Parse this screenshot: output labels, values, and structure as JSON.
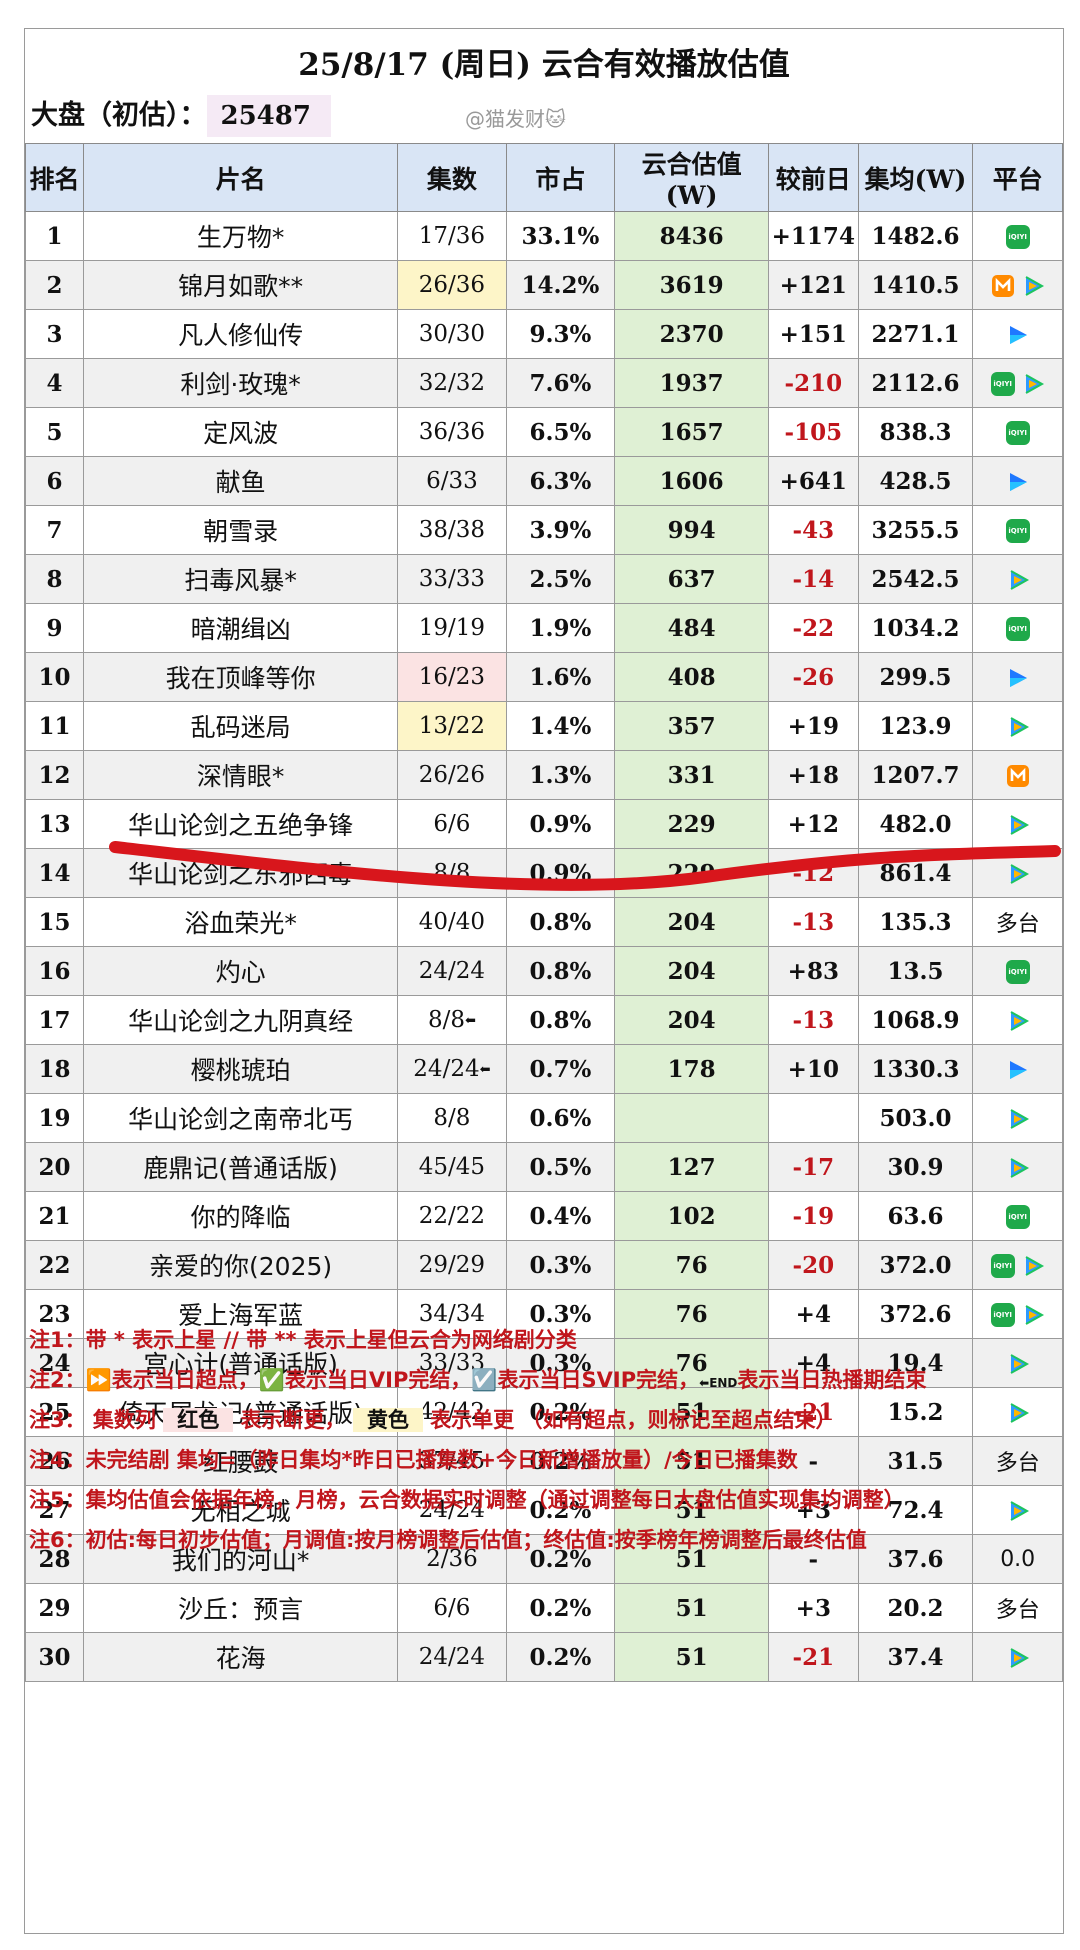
{
  "title": "25/8/17 (周日) 云合有效播放估值",
  "summary": {
    "label": "大盘（初估）：",
    "value": "25487"
  },
  "watermark": "@猫发财🐱",
  "headers": [
    "排名",
    "片名",
    "集数",
    "市占",
    "云合估值(W)",
    "较前日",
    "集均(W)",
    "平台"
  ],
  "colors": {
    "header_bg": "#d9e5f5",
    "estimate_bg": "#dff0d4",
    "negative": "#c0161c",
    "episode_red": "#fbe3e3",
    "episode_yellow": "#fdf5c8",
    "strike_line": "#d8161c"
  },
  "rows": [
    {
      "rank": "1",
      "name": "生万物*",
      "eps": "17/36",
      "share": "33.1%",
      "est": "8436",
      "chg": "+1174",
      "avg": "1482.6",
      "plat": [
        "iqiyi-icon"
      ]
    },
    {
      "rank": "2",
      "name": "锦月如歌**",
      "eps": "26/36",
      "eps_mark": "yellow",
      "share": "14.2%",
      "est": "3619",
      "chg": "+121",
      "avg": "1410.5",
      "plat": [
        "mango-icon",
        "tencent-video-icon"
      ]
    },
    {
      "rank": "3",
      "name": "凡人修仙传",
      "eps": "30/30",
      "share": "9.3%",
      "est": "2370",
      "chg": "+151",
      "avg": "2271.1",
      "plat": [
        "youku-icon"
      ]
    },
    {
      "rank": "4",
      "name": "利剑·玫瑰*",
      "eps": "32/32",
      "share": "7.6%",
      "est": "1937",
      "chg": "-210",
      "avg": "2112.6",
      "plat": [
        "iqiyi-icon",
        "tencent-video-icon"
      ]
    },
    {
      "rank": "5",
      "name": "定风波",
      "eps": "36/36",
      "share": "6.5%",
      "est": "1657",
      "chg": "-105",
      "avg": "838.3",
      "plat": [
        "iqiyi-icon"
      ]
    },
    {
      "rank": "6",
      "name": "献鱼",
      "eps": "6/33",
      "share": "6.3%",
      "est": "1606",
      "chg": "+641",
      "avg": "428.5",
      "plat": [
        "youku-icon"
      ]
    },
    {
      "rank": "7",
      "name": "朝雪录",
      "eps": "38/38",
      "share": "3.9%",
      "est": "994",
      "chg": "-43",
      "avg": "3255.5",
      "plat": [
        "iqiyi-icon"
      ]
    },
    {
      "rank": "8",
      "name": "扫毒风暴*",
      "eps": "33/33",
      "share": "2.5%",
      "est": "637",
      "chg": "-14",
      "avg": "2542.5",
      "plat": [
        "tencent-video-icon"
      ]
    },
    {
      "rank": "9",
      "name": "暗潮缉凶",
      "eps": "19/19",
      "share": "1.9%",
      "est": "484",
      "chg": "-22",
      "avg": "1034.2",
      "plat": [
        "iqiyi-icon"
      ]
    },
    {
      "rank": "10",
      "name": "我在顶峰等你",
      "eps": "16/23",
      "eps_mark": "red",
      "share": "1.6%",
      "est": "408",
      "chg": "-26",
      "avg": "299.5",
      "plat": [
        "youku-icon"
      ]
    },
    {
      "rank": "11",
      "name": "乱码迷局",
      "eps": "13/22",
      "eps_mark": "yellow",
      "share": "1.4%",
      "est": "357",
      "chg": "+19",
      "avg": "123.9",
      "plat": [
        "tencent-video-icon"
      ]
    },
    {
      "rank": "12",
      "name": "深情眼*",
      "eps": "26/26",
      "share": "1.3%",
      "est": "331",
      "chg": "+18",
      "avg": "1207.7",
      "plat": [
        "mango-icon"
      ]
    },
    {
      "rank": "13",
      "name": "华山论剑之五绝争锋",
      "eps": "6/6",
      "share": "0.9%",
      "est": "229",
      "chg": "+12",
      "avg": "482.0",
      "plat": [
        "tencent-video-icon"
      ]
    },
    {
      "rank": "14",
      "name": "华山论剑之东邪西毒",
      "eps": "8/8",
      "share": "0.9%",
      "est": "229",
      "chg": "-12",
      "avg": "861.4",
      "plat": [
        "tencent-video-icon"
      ]
    },
    {
      "rank": "15",
      "name": "浴血荣光*",
      "eps": "40/40",
      "share": "0.8%",
      "est": "204",
      "chg": "-13",
      "avg": "135.3",
      "plat_text": "多台"
    },
    {
      "rank": "16",
      "name": "灼心",
      "eps": "24/24",
      "share": "0.8%",
      "est": "204",
      "chg": "+83",
      "avg": "13.5",
      "plat": [
        "iqiyi-icon"
      ]
    },
    {
      "rank": "17",
      "name": "华山论剑之九阴真经",
      "eps": "8/8",
      "eps_end": true,
      "share": "0.8%",
      "est": "204",
      "chg": "-13",
      "avg": "1068.9",
      "plat": [
        "tencent-video-icon"
      ]
    },
    {
      "rank": "18",
      "name": "樱桃琥珀",
      "eps": "24/24",
      "eps_end": true,
      "share": "0.7%",
      "est": "178",
      "chg": "+10",
      "avg": "1330.3",
      "plat": [
        "youku-icon"
      ]
    },
    {
      "rank": "19",
      "name": "华山论剑之南帝北丐",
      "eps": "8/8",
      "share": "0.6%",
      "est": "",
      "chg": "",
      "avg": "503.0",
      "plat": [
        "tencent-video-icon"
      ]
    },
    {
      "rank": "20",
      "name": "鹿鼎记(普通话版)",
      "eps": "45/45",
      "share": "0.5%",
      "est": "127",
      "chg": "-17",
      "avg": "30.9",
      "plat": [
        "tencent-video-icon"
      ]
    },
    {
      "rank": "21",
      "name": "你的降临",
      "eps": "22/22",
      "share": "0.4%",
      "est": "102",
      "chg": "-19",
      "avg": "63.6",
      "plat": [
        "iqiyi-icon"
      ]
    },
    {
      "rank": "22",
      "name": "亲爱的你(2025)",
      "eps": "29/29",
      "share": "0.3%",
      "est": "76",
      "chg": "-20",
      "avg": "372.0",
      "plat": [
        "iqiyi-icon",
        "tencent-video-icon"
      ]
    },
    {
      "rank": "23",
      "name": "爱上海军蓝",
      "eps": "34/34",
      "share": "0.3%",
      "est": "76",
      "chg": "+4",
      "avg": "372.6",
      "plat": [
        "iqiyi-icon",
        "tencent-video-icon"
      ]
    },
    {
      "rank": "24",
      "name": "宫心计(普通话版)",
      "eps": "33/33",
      "share": "0.3%",
      "est": "76",
      "chg": "+4",
      "avg": "19.4",
      "plat": [
        "tencent-video-icon"
      ]
    },
    {
      "rank": "25",
      "name": "倚天屠龙记(普通话版)",
      "eps": "42/42",
      "share": "0.2%",
      "est": "51",
      "chg": "-21",
      "avg": "15.2",
      "plat": [
        "tencent-video-icon"
      ]
    },
    {
      "rank": "26",
      "name": "红腰鼓",
      "eps": "37/45",
      "share": "0.2%",
      "est": "51",
      "chg": "-",
      "avg": "31.5",
      "plat_text": "多台"
    },
    {
      "rank": "27",
      "name": "无相之城",
      "eps": "24/24",
      "share": "0.2%",
      "est": "51",
      "chg": "+3",
      "avg": "72.4",
      "plat": [
        "tencent-video-icon"
      ]
    },
    {
      "rank": "28",
      "name": "我们的河山*",
      "eps": "2/36",
      "share": "0.2%",
      "est": "51",
      "chg": "-",
      "avg": "37.6",
      "plat_text": "0.0"
    },
    {
      "rank": "29",
      "name": "沙丘：预言",
      "eps": "6/6",
      "share": "0.2%",
      "est": "51",
      "chg": "+3",
      "avg": "20.2",
      "plat_text": "多台"
    },
    {
      "rank": "30",
      "name": "花海",
      "eps": "24/24",
      "share": "0.2%",
      "est": "51",
      "chg": "-21",
      "avg": "37.4",
      "plat": [
        "tencent-video-icon"
      ]
    }
  ],
  "notes": {
    "n1": "注1：带 * 表示上星 // 带 ** 表示上星但云合为网络剧分类",
    "n2": {
      "label": "注2：",
      "a": "⏩表示当日超点，",
      "b": "✅表示当日VIP完结，",
      "c": "☑️表示当日SVIP完结，",
      "d_mark": "END",
      "d": "表示当日热播期结束"
    },
    "n3": {
      "a": "注3：  集数列 ",
      "red": "红色",
      "b": " 表示断更， ",
      "yellow": "黄色",
      "c": " 表示单更 （如有超点，则标记至超点结束）"
    },
    "n4": "注4：未完结剧 集均=（昨日集均*昨日已播集数+今日新增播放量）/今日已播集数",
    "n5": "注5：集均估值会依据年榜，月榜，云合数据实时调整（通过调整每日大盘估值实现集均调整）",
    "n6": "注6：初估:每日初步估值；月调值:按月榜调整后估值；终估值:按季榜年榜调整后最终估值"
  }
}
